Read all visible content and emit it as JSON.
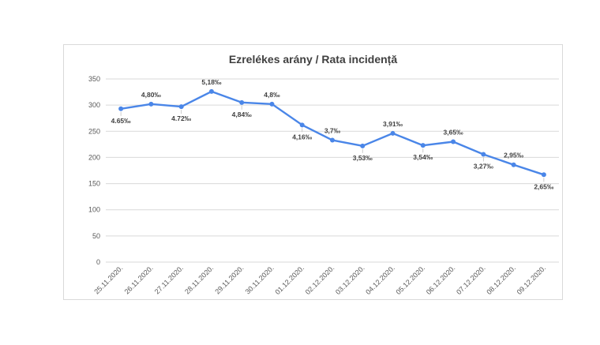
{
  "chart_data": {
    "type": "line",
    "title": "Ezrelékes arány / Rata incidență",
    "categories": [
      "25.11.2020.",
      "26.11.2020.",
      "27.11.2020.",
      "28.11.2020.",
      "29.11.2020.",
      "30.11.2020.",
      "01.12.2020.",
      "02.12.2020.",
      "03.12.2020.",
      "04.12.2020.",
      "05.12.2020.",
      "06.12.2020.",
      "07.12.2020.",
      "08.12.2020.",
      "09.12.2020."
    ],
    "values": [
      293,
      302,
      297,
      326,
      305,
      302,
      262,
      233,
      222,
      246,
      223,
      230,
      206,
      186,
      167
    ],
    "data_labels": [
      "4.65‰",
      "4,80‰",
      "4.72‰",
      "5,18‰",
      "4,84‰",
      "4,8‰",
      "4,16‰",
      "3,7‰",
      "3,53‰",
      "3,91‰",
      "3,54‰",
      "3,65‰",
      "3,27‰",
      "2,95‰",
      "2,65‰"
    ],
    "label_position": [
      "below",
      "above",
      "below",
      "above",
      "below",
      "above",
      "below",
      "above",
      "below",
      "above",
      "below",
      "above",
      "below",
      "above",
      "below"
    ],
    "y_ticks": [
      0,
      50,
      100,
      150,
      200,
      250,
      300,
      350
    ],
    "ylim": [
      0,
      350
    ],
    "xlabel": "",
    "ylabel": "",
    "grid": true,
    "legend": "none",
    "line_color": "#4a86e8",
    "grid_color": "#d9d9d9"
  }
}
